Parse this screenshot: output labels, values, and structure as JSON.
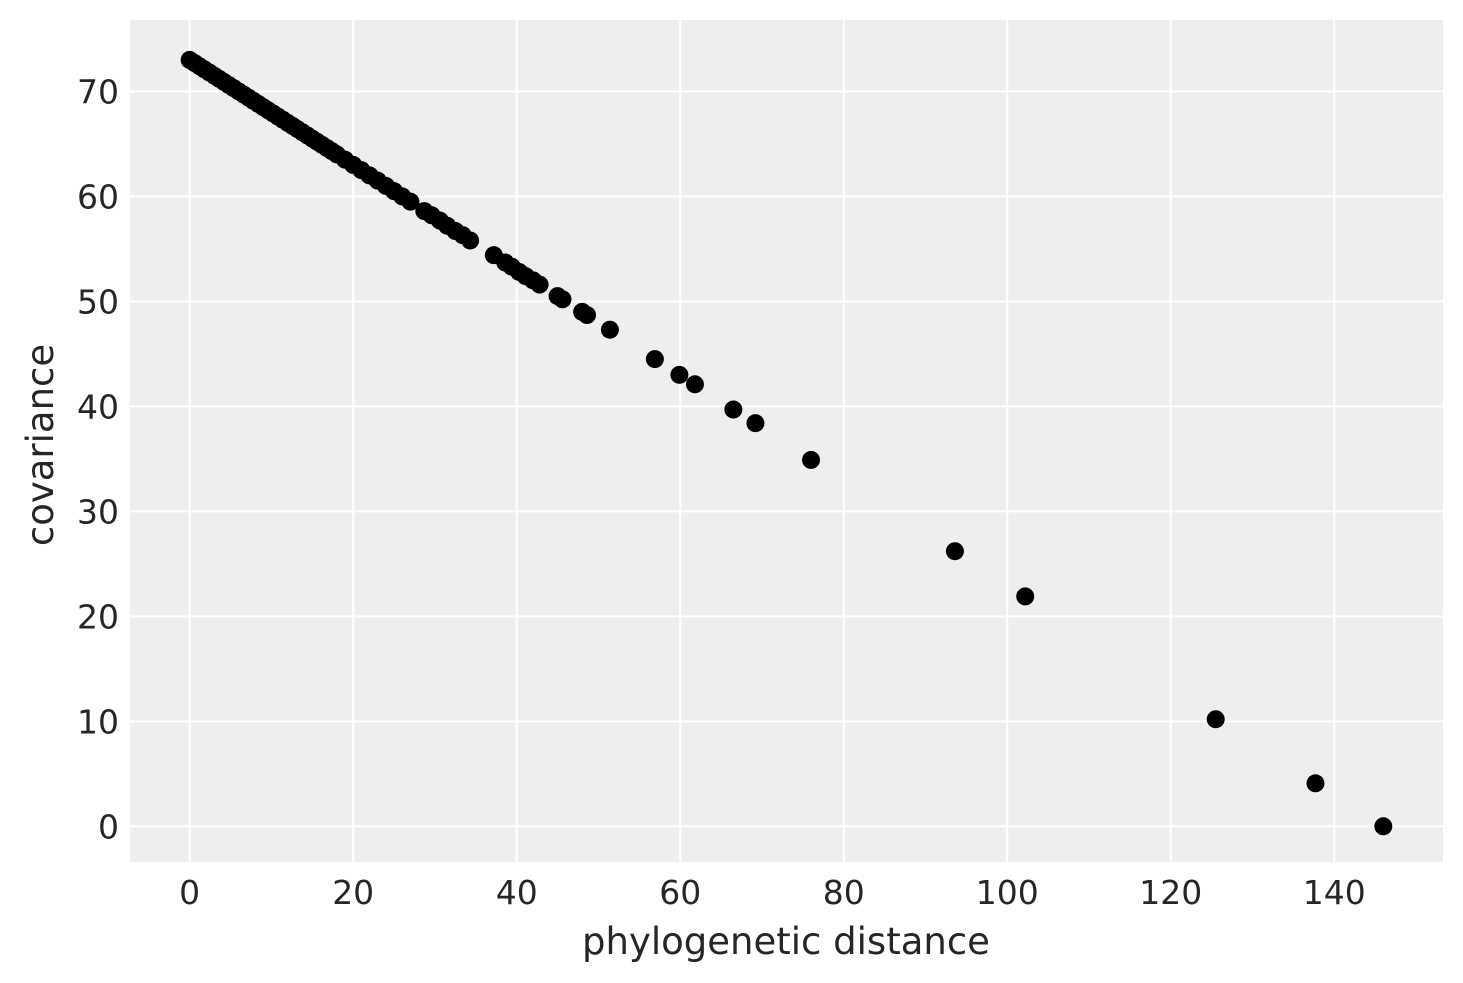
{
  "chart_data": {
    "type": "scatter",
    "title": "",
    "xlabel": "phylogenetic distance",
    "ylabel": "covariance",
    "xlim": [
      -7.3,
      153.3
    ],
    "ylim": [
      -3.4,
      76.8
    ],
    "xticks": [
      0,
      20,
      40,
      60,
      80,
      100,
      120,
      140
    ],
    "yticks": [
      0,
      10,
      20,
      30,
      40,
      50,
      60,
      70
    ],
    "grid": true,
    "legend": "none",
    "colors": {
      "background": "#EEEEEE",
      "grid": "#FFFFFF",
      "marker": "#000000",
      "text": "#262626"
    },
    "x": [
      0,
      0.6,
      1.2,
      1.8,
      2.4,
      3,
      3.6,
      4.2,
      4.8,
      5.4,
      6,
      6.6,
      7.2,
      7.8,
      8.4,
      9,
      9.6,
      10.2,
      10.8,
      11.4,
      12,
      12.6,
      13.2,
      13.8,
      14.4,
      15,
      15.6,
      16.2,
      16.8,
      17.4,
      18,
      19,
      20,
      21,
      22,
      23,
      24,
      25,
      26,
      27,
      28.7,
      29.6,
      30.6,
      31.5,
      32.5,
      33.4,
      34.3,
      37.2,
      38.6,
      39.4,
      40.3,
      41.1,
      42,
      42.8,
      45,
      45.6,
      48,
      48.6,
      51.4,
      56.9,
      59.9,
      61.8,
      66.5,
      69.2,
      76,
      93.6,
      102.2,
      125.5,
      137.7,
      146
    ],
    "y": [
      73,
      72.7,
      72.4,
      72.1,
      71.8,
      71.5,
      71.2,
      70.9,
      70.6,
      70.3,
      70,
      69.7,
      69.4,
      69.1,
      68.8,
      68.5,
      68.2,
      67.9,
      67.6,
      67.3,
      67,
      66.7,
      66.4,
      66.1,
      65.8,
      65.5,
      65.2,
      64.9,
      64.6,
      64.3,
      64,
      63.5,
      63,
      62.5,
      62,
      61.5,
      61,
      60.5,
      60,
      59.5,
      58.6,
      58.2,
      57.7,
      57.2,
      56.7,
      56.3,
      55.8,
      54.4,
      53.7,
      53.3,
      52.8,
      52.4,
      52,
      51.6,
      50.5,
      50.2,
      49,
      48.7,
      47.3,
      44.5,
      43,
      42.1,
      39.7,
      38.4,
      34.9,
      26.2,
      21.9,
      10.2,
      4.1,
      0
    ]
  }
}
